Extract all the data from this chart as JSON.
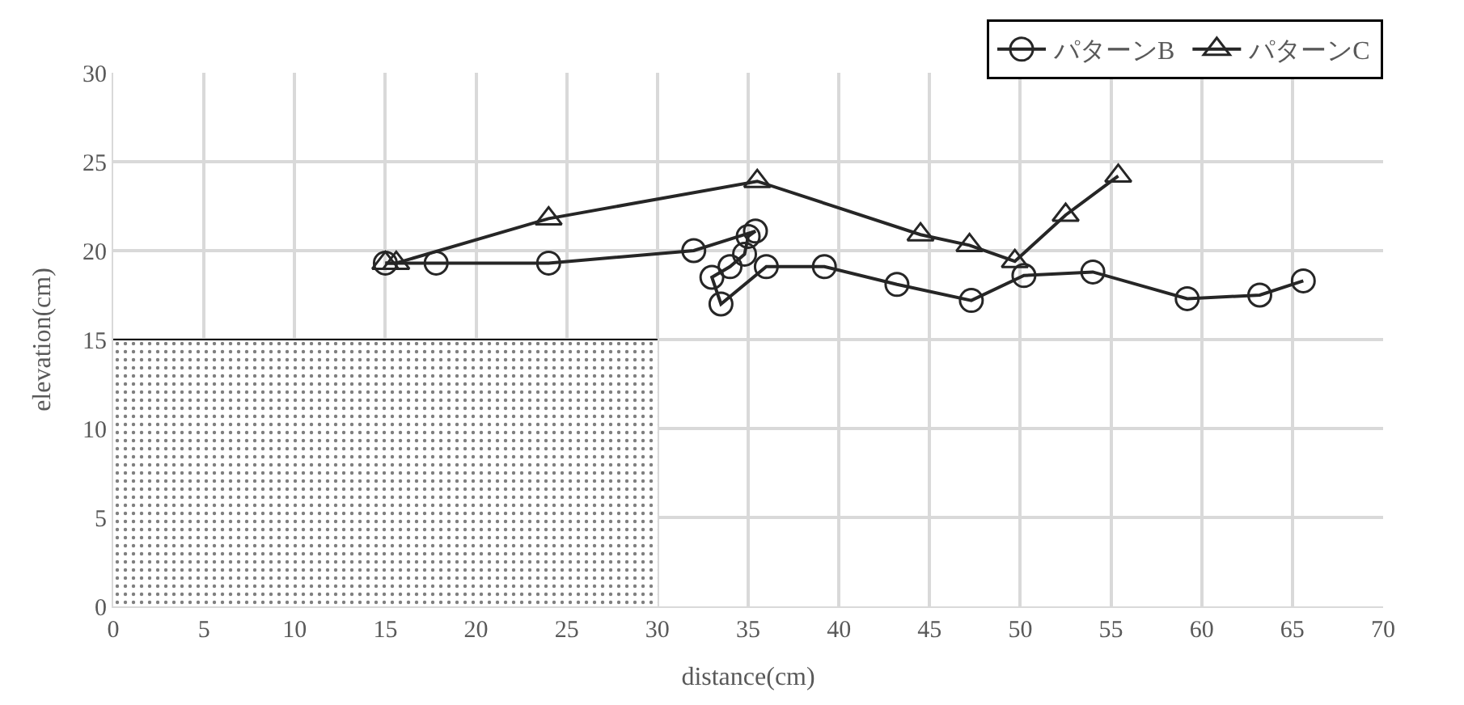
{
  "chart_data": {
    "type": "line",
    "xlabel": "distance(cm)",
    "ylabel": "elevation(cm)",
    "xlim": [
      0,
      70
    ],
    "xticks": [
      0,
      5,
      10,
      15,
      20,
      25,
      30,
      35,
      40,
      45,
      50,
      55,
      60,
      65,
      70
    ],
    "ylim": [
      0,
      30
    ],
    "yticks": [
      0,
      5,
      10,
      15,
      20,
      25,
      30
    ],
    "grid": true,
    "legend": "top right",
    "series": [
      {
        "type": "area",
        "color": "#000000",
        "x": [
          0,
          30
        ],
        "values": [
          15,
          15
        ],
        "marker": "none"
      },
      {
        "name": "パターンB",
        "color": "#262626",
        "marker": "circle",
        "x": [
          15,
          17.8,
          24,
          32,
          35.4,
          35,
          34.8,
          34,
          33,
          33.5,
          36,
          39.2,
          43.2,
          47.3,
          50.2,
          54,
          59.2,
          63.2,
          65.6
        ],
        "values": [
          19.3,
          19.3,
          19.3,
          20,
          21.1,
          20.8,
          19.8,
          19.1,
          18.5,
          17,
          19.1,
          19.1,
          18.1,
          17.2,
          18.6,
          18.8,
          17.3,
          17.5,
          18.3
        ]
      },
      {
        "name": "パターンC",
        "color": "#262626",
        "marker": "triangle",
        "x": [
          15,
          15.6,
          24,
          35.5,
          44.5,
          47.2,
          49.7,
          52.5,
          55.4
        ],
        "values": [
          19.3,
          19.3,
          21.8,
          23.9,
          20.9,
          20.3,
          19.4,
          22,
          24.2
        ]
      }
    ]
  }
}
